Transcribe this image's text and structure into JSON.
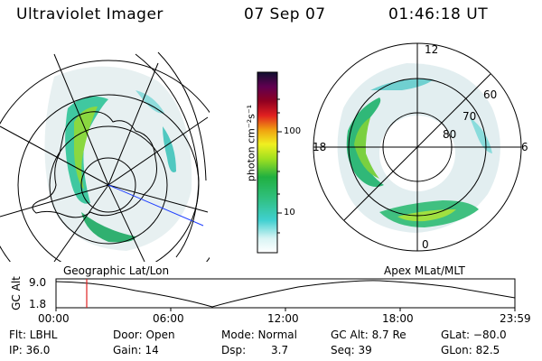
{
  "header": {
    "title": "Ultraviolet Imager",
    "date": "07 Sep 07",
    "time": "01:46:18 UT"
  },
  "colorbar": {
    "label": "photon cm⁻²s⁻¹",
    "ticks": [
      "100",
      "10"
    ]
  },
  "geo_panel": {
    "label": "Geographic Lat/Lon"
  },
  "apex_panel": {
    "label": "Apex  MLat/MLT",
    "mlt_labels": [
      "12",
      "18",
      "6",
      "0"
    ],
    "lat_labels": [
      "60",
      "70",
      "80"
    ]
  },
  "timeline": {
    "y_axis_label": "GC Alt",
    "y_ticks": [
      "9.0",
      "1.8"
    ],
    "x_ticks": [
      "00:00",
      "06:00",
      "12:00",
      "18:00",
      "23:59"
    ],
    "marker_time": "01:46:18"
  },
  "info": {
    "flt": "Flt: LBHL",
    "ip": "IP: 36.0",
    "door": "Door: Open",
    "gain": "Gain: 14",
    "mode": "Mode: Normal",
    "dsp_label": "Dsp:",
    "dsp_value": "3.7",
    "gc_alt": "GC Alt: 8.7 Re",
    "seq": "Seq: 39",
    "glat": "GLat: −80.0",
    "glon": "GLon:  82.5"
  }
}
